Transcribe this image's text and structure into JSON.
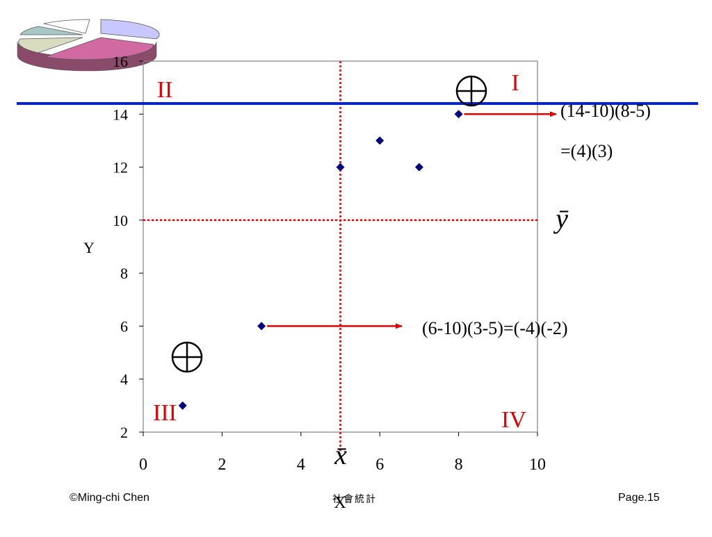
{
  "footer": {
    "left": "©Ming-chi Chen",
    "center": "社會統計",
    "right": "Page.15"
  },
  "colors": {
    "points": "#000080",
    "mean_lines": "#e00000",
    "y_reference_line": "#0022dd",
    "arrows": "#e00000",
    "quadrant_labels": "#e00000",
    "logo_pie": [
      "#c8c8ff",
      "#d16aa3",
      "#d9dcc0",
      "#a8c8c8",
      "#ffffff"
    ]
  },
  "icons": {
    "logo": "pie-chart-3d-icon",
    "positive_sign": "circled-plus-icon"
  },
  "chart_data": {
    "type": "scatter",
    "title": "",
    "xlabel": "X",
    "ylabel": "Y",
    "xlim": [
      0,
      10
    ],
    "ylim": [
      2,
      16
    ],
    "x_ticks": [
      0,
      2,
      4,
      6,
      8,
      10
    ],
    "y_ticks": [
      2,
      4,
      6,
      8,
      10,
      12,
      14,
      16
    ],
    "grid": false,
    "points": [
      {
        "x": 1,
        "y": 3
      },
      {
        "x": 3,
        "y": 6
      },
      {
        "x": 5,
        "y": 12
      },
      {
        "x": 6,
        "y": 13
      },
      {
        "x": 7,
        "y": 12
      },
      {
        "x": 8,
        "y": 14
      }
    ],
    "x_mean": 5,
    "y_mean": 10,
    "x_mean_label": "x̄",
    "y_mean_label": "ȳ",
    "horizontal_reference_y": 14.4,
    "quadrants": [
      {
        "label": "I",
        "position": "top-right"
      },
      {
        "label": "II",
        "position": "top-left"
      },
      {
        "label": "III",
        "position": "bottom-left"
      },
      {
        "label": "IV",
        "position": "bottom-right"
      }
    ],
    "annotations": [
      {
        "from": {
          "x": 8,
          "y": 14
        },
        "text_lines": [
          "(14-10)(8-5)",
          "=(4)(3)"
        ]
      },
      {
        "from": {
          "x": 3,
          "y": 6
        },
        "text_lines": [
          "(6-10)(3-5)=(-4)(-2)"
        ]
      }
    ],
    "signs": [
      {
        "symbol": "⊕",
        "quadrant": "I"
      },
      {
        "symbol": "⊕",
        "quadrant": "III"
      }
    ]
  }
}
